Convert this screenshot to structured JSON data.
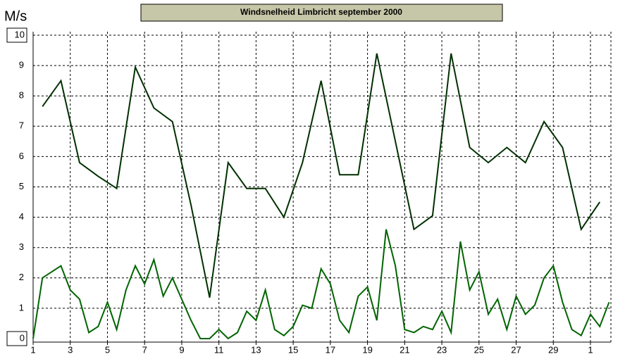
{
  "chart_data": {
    "type": "line",
    "title": "Windsnelheid Limbricht september 2000",
    "y_label": "M/s",
    "xlim": [
      1,
      32.1
    ],
    "ylim": [
      0,
      10
    ],
    "xticks": [
      1,
      3,
      5,
      7,
      9,
      11,
      13,
      15,
      17,
      19,
      21,
      23,
      25,
      27,
      29,
      {
        "value": 31,
        "label": "1"
      }
    ],
    "yticks": [
      0,
      1,
      2,
      3,
      4,
      5,
      6,
      7,
      8,
      9,
      10
    ],
    "grid": true,
    "series": [
      {
        "color": "#003000",
        "x": [
          1.5,
          2.5,
          3.5,
          4.5,
          5.5,
          6.5,
          7.5,
          8.5,
          9.5,
          10.5,
          11.5,
          12.5,
          13.5,
          14.5,
          15.5,
          16.5,
          17.5,
          18.5,
          19.5,
          20.5,
          21.5,
          22.5,
          23.5,
          24.5,
          25.5,
          26.5,
          27.5,
          28.5,
          29.5,
          30.5,
          31.5
        ],
        "values": [
          7.65,
          8.5,
          5.8,
          5.35,
          4.95,
          8.95,
          7.6,
          7.15,
          4.4,
          1.35,
          5.8,
          4.95,
          4.95,
          4.0,
          5.8,
          8.5,
          5.4,
          5.4,
          9.4,
          6.5,
          3.6,
          4.05,
          9.4,
          6.3,
          5.8,
          6.3,
          5.8,
          7.15,
          6.3,
          3.6,
          4.5
        ]
      },
      {
        "color": "#006400",
        "x": [
          1,
          1.5,
          2,
          2.5,
          3,
          3.5,
          4,
          4.5,
          5,
          5.5,
          6,
          6.5,
          7,
          7.5,
          8,
          8.5,
          9,
          9.5,
          10,
          10.5,
          11,
          11.5,
          12,
          12.5,
          13,
          13.5,
          14,
          14.5,
          15,
          15.5,
          16,
          16.5,
          17,
          17.5,
          18,
          18.5,
          19,
          19.5,
          20,
          20.5,
          21,
          21.5,
          22,
          22.5,
          23,
          23.5,
          24,
          24.5,
          25,
          25.5,
          26,
          26.5,
          27,
          27.5,
          28,
          28.5,
          29,
          29.5,
          30,
          30.5,
          31,
          31.5,
          32
        ],
        "values": [
          0,
          2.0,
          2.2,
          2.4,
          1.6,
          1.3,
          0.2,
          0.4,
          1.2,
          0.3,
          1.6,
          2.4,
          1.8,
          2.6,
          1.4,
          2.0,
          1.3,
          0.6,
          0,
          0,
          0.3,
          0,
          0.2,
          0.9,
          0.6,
          1.6,
          0.3,
          0.1,
          0.4,
          1.1,
          1.0,
          2.3,
          1.8,
          0.6,
          0.2,
          1.4,
          1.7,
          0.6,
          3.6,
          2.4,
          0.3,
          0.2,
          0.4,
          0.3,
          0.9,
          0.2,
          3.2,
          1.6,
          2.2,
          0.8,
          1.3,
          0.3,
          1.4,
          0.8,
          1.1,
          2.0,
          2.4,
          1.2,
          0.3,
          0.1,
          0.8,
          0.4,
          1.2
        ]
      }
    ]
  }
}
